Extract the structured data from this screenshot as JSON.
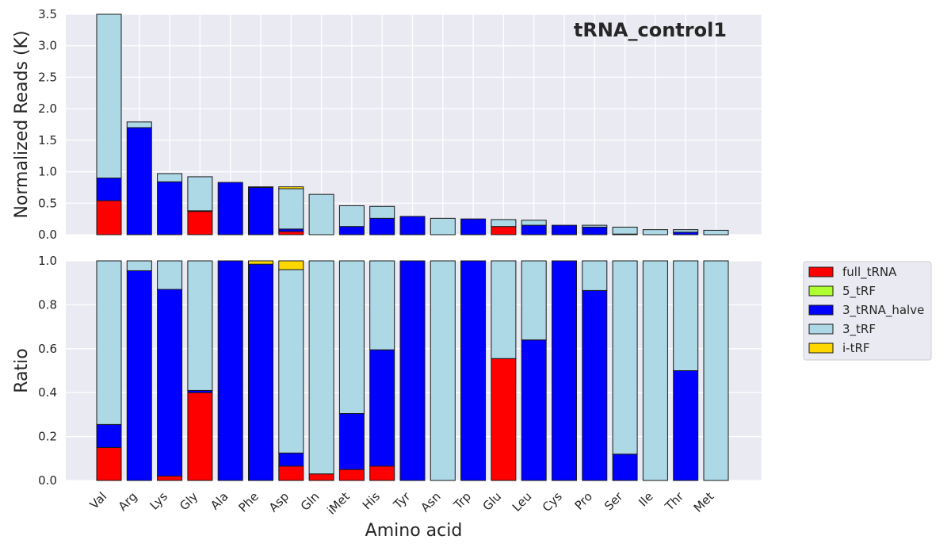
{
  "chart_data": {
    "type": "bar",
    "stacked": true,
    "categories": [
      "Val",
      "Arg",
      "Lys",
      "Gly",
      "Ala",
      "Phe",
      "Asp",
      "Gln",
      "iMet",
      "His",
      "Tyr",
      "Asn",
      "Trp",
      "Glu",
      "Leu",
      "Cys",
      "Pro",
      "Ser",
      "Ile",
      "Thr",
      "Met"
    ],
    "xlabel": "Amino acid",
    "legend": {
      "placement": "outside-right",
      "entries": [
        {
          "name": "full_tRNA",
          "color": "#ff0000"
        },
        {
          "name": "5_tRF",
          "color": "#adff2f"
        },
        {
          "name": "3_tRNA_halve",
          "color": "#0000ff"
        },
        {
          "name": "3_tRF",
          "color": "#add8e6"
        },
        {
          "name": "i-tRF",
          "color": "#ffd700"
        }
      ]
    },
    "panels": [
      {
        "id": "reads",
        "title": "tRNA_control1",
        "ylabel": "Normalized Reads (K)",
        "ylim": [
          0,
          3.5
        ],
        "yticks": [
          "0.0",
          "0.5",
          "1.0",
          "1.5",
          "2.0",
          "2.5",
          "3.0",
          "3.5"
        ],
        "grid": true,
        "series": [
          {
            "name": "full_tRNA",
            "color": "#ff0000",
            "values": [
              0.54,
              0,
              0,
              0.37,
              0,
              0,
              0.05,
              0,
              0,
              0,
              0,
              0,
              0,
              0.13,
              0,
              0,
              0,
              0,
              0,
              0,
              0
            ]
          },
          {
            "name": "5_tRF",
            "color": "#adff2f",
            "values": [
              0,
              0,
              0,
              0,
              0,
              0,
              0,
              0,
              0,
              0,
              0,
              0,
              0,
              0,
              0,
              0,
              0,
              0,
              0,
              0,
              0
            ]
          },
          {
            "name": "3_tRNA_halve",
            "color": "#0000ff",
            "values": [
              0.36,
              1.7,
              0.84,
              0.01,
              0.83,
              0.75,
              0.04,
              0,
              0.13,
              0.26,
              0.29,
              0,
              0.25,
              0,
              0.15,
              0.15,
              0.12,
              0.01,
              0,
              0.04,
              0
            ]
          },
          {
            "name": "3_tRF",
            "color": "#add8e6",
            "values": [
              2.6,
              0.09,
              0.13,
              0.54,
              0,
              0.01,
              0.64,
              0.64,
              0.33,
              0.19,
              0,
              0.26,
              0,
              0.11,
              0.08,
              0,
              0.03,
              0.11,
              0.08,
              0.04,
              0.07
            ]
          },
          {
            "name": "i-tRF",
            "color": "#ffd700",
            "values": [
              0,
              0,
              0,
              0,
              0,
              0,
              0.03,
              0,
              0,
              0,
              0,
              0,
              0,
              0,
              0,
              0,
              0,
              0,
              0,
              0,
              0
            ]
          }
        ]
      },
      {
        "id": "ratio",
        "ylabel": "Ratio",
        "ylim": [
          0,
          1.0
        ],
        "yticks": [
          "0.0",
          "0.2",
          "0.4",
          "0.6",
          "0.8",
          "1.0"
        ],
        "grid": true,
        "series": [
          {
            "name": "full_tRNA",
            "color": "#ff0000",
            "values": [
              0.15,
              0,
              0.02,
              0.4,
              0,
              0,
              0.065,
              0.03,
              0.05,
              0.065,
              0,
              0,
              0,
              0.555,
              0,
              0,
              0,
              0,
              0,
              0,
              0
            ]
          },
          {
            "name": "5_tRF",
            "color": "#adff2f",
            "values": [
              0,
              0,
              0,
              0,
              0,
              0,
              0,
              0,
              0,
              0,
              0,
              0,
              0,
              0,
              0,
              0,
              0,
              0,
              0,
              0,
              0
            ]
          },
          {
            "name": "3_tRNA_halve",
            "color": "#0000ff",
            "values": [
              0.105,
              0.955,
              0.85,
              0.01,
              1.0,
              0.985,
              0.06,
              0,
              0.255,
              0.53,
              1.0,
              0,
              1.0,
              0,
              0.64,
              1.0,
              0.865,
              0.12,
              0,
              0.5,
              0
            ]
          },
          {
            "name": "3_tRF",
            "color": "#add8e6",
            "values": [
              0.745,
              0.045,
              0.13,
              0.59,
              0,
              0,
              0.835,
              0.97,
              0.695,
              0.405,
              0,
              1.0,
              0,
              0.445,
              0.36,
              0,
              0.135,
              0.88,
              1.0,
              0.5,
              1.0
            ]
          },
          {
            "name": "i-tRF",
            "color": "#ffd700",
            "values": [
              0,
              0,
              0,
              0,
              0,
              0.015,
              0.04,
              0,
              0,
              0,
              0,
              0,
              0,
              0,
              0,
              0,
              0,
              0,
              0,
              0,
              0
            ]
          }
        ]
      }
    ]
  }
}
